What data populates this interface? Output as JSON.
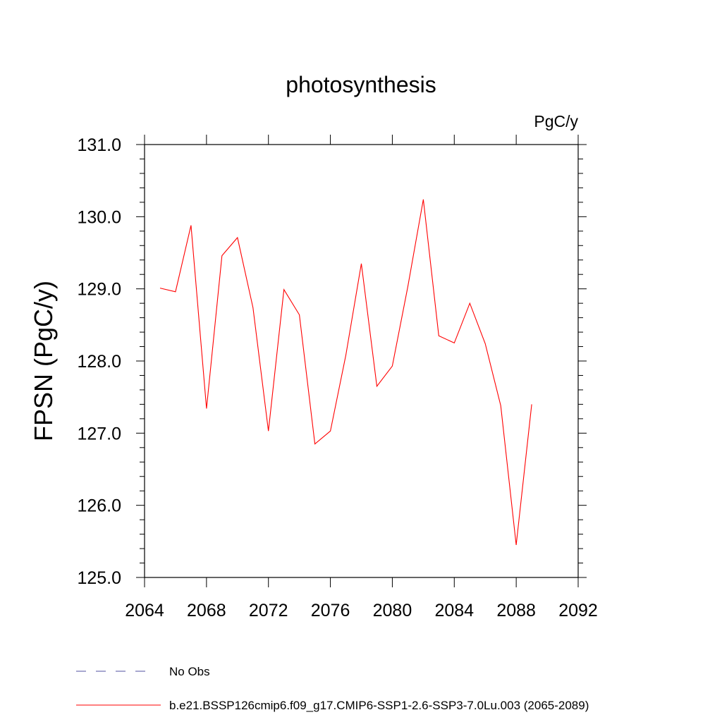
{
  "chart_data": {
    "type": "line",
    "title": "photosynthesis",
    "units_label": "PgC/y",
    "ylabel": "FPSN  (PgC/y)",
    "xlabel": "",
    "xlim": [
      2064,
      2092
    ],
    "ylim": [
      125.0,
      131.0
    ],
    "x_ticks": [
      2064,
      2068,
      2072,
      2076,
      2080,
      2084,
      2088,
      2092
    ],
    "x_tick_labels": [
      "2064",
      "2068",
      "2072",
      "2076",
      "2080",
      "2084",
      "2088",
      "2092"
    ],
    "y_ticks": [
      125.0,
      126.0,
      127.0,
      128.0,
      129.0,
      130.0,
      131.0
    ],
    "y_tick_labels": [
      "125.0",
      "126.0",
      "127.0",
      "128.0",
      "129.0",
      "130.0",
      "131.0"
    ],
    "grid": false,
    "legend_placement": "bottom",
    "series": [
      {
        "name": "b.e21.BSSP126cmip6.f09_g17.CMIP6-SSP1-2.6-SSP3-7.0Lu.003 (2065-2089)",
        "color": "#ff0000",
        "style": "solid",
        "x": [
          2065,
          2066,
          2067,
          2068,
          2069,
          2070,
          2071,
          2072,
          2073,
          2074,
          2075,
          2076,
          2077,
          2078,
          2079,
          2080,
          2081,
          2082,
          2083,
          2084,
          2085,
          2086,
          2087,
          2088,
          2089
        ],
        "y": [
          129.01,
          128.96,
          129.88,
          127.34,
          129.46,
          129.71,
          128.74,
          127.03,
          128.99,
          128.64,
          126.85,
          127.03,
          128.08,
          129.35,
          127.65,
          127.93,
          129.03,
          130.24,
          128.35,
          128.25,
          128.8,
          128.24,
          127.38,
          125.45,
          127.4
        ]
      }
    ],
    "legend": [
      {
        "label": "No Obs",
        "color": "#5050a0",
        "style": "dashed"
      },
      {
        "label": "b.e21.BSSP126cmip6.f09_g17.CMIP6-SSP1-2.6-SSP3-7.0Lu.003 (2065-2089)",
        "color": "#ff0000",
        "style": "solid"
      }
    ]
  }
}
